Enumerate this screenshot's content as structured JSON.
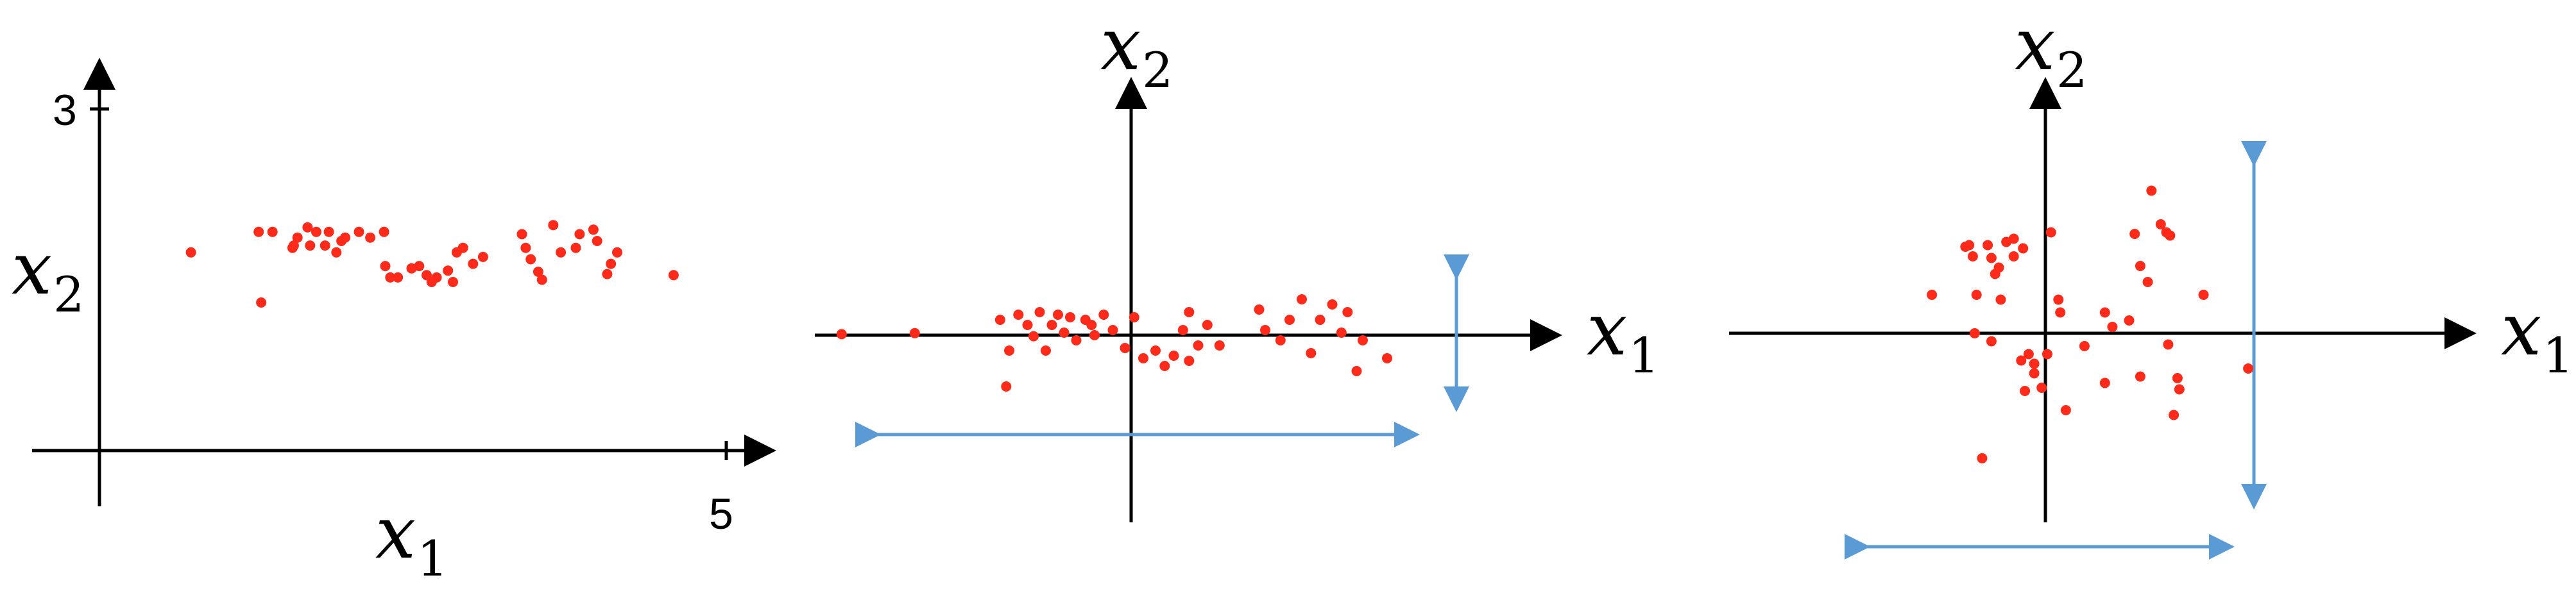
{
  "colors": {
    "point": "#ff2a1a",
    "axis": "#000000",
    "arrow": "#5b9bd5"
  },
  "chart_data": [
    {
      "type": "scatter",
      "title": "",
      "xlabel": "x_1",
      "ylabel": "x_2",
      "x_ticks": [
        "5"
      ],
      "y_ticks": [
        "3"
      ],
      "xlim": [
        0,
        5
      ],
      "ylim": [
        0,
        3
      ],
      "grid": false,
      "points": [
        [
          0.73,
          1.74
        ],
        [
          1.27,
          1.92
        ],
        [
          1.38,
          1.92
        ],
        [
          1.55,
          1.8
        ],
        [
          1.58,
          1.87
        ],
        [
          1.68,
          1.8
        ],
        [
          1.73,
          1.92
        ],
        [
          1.8,
          1.8
        ],
        [
          1.83,
          1.92
        ],
        [
          1.89,
          1.74
        ],
        [
          1.96,
          1.87
        ],
        [
          2.07,
          1.92
        ],
        [
          2.16,
          1.87
        ],
        [
          2.27,
          1.92
        ],
        [
          2.28,
          1.62
        ],
        [
          2.32,
          1.52
        ],
        [
          2.38,
          1.52
        ],
        [
          2.49,
          1.6
        ],
        [
          2.61,
          1.54
        ],
        [
          2.65,
          1.48
        ],
        [
          2.69,
          1.52
        ],
        [
          2.82,
          1.48
        ],
        [
          2.78,
          1.58
        ],
        [
          2.85,
          1.74
        ],
        [
          2.9,
          1.78
        ],
        [
          2.98,
          1.64
        ],
        [
          3.37,
          1.9
        ],
        [
          3.4,
          1.78
        ],
        [
          3.44,
          1.68
        ],
        [
          3.5,
          1.57
        ],
        [
          3.53,
          1.5
        ],
        [
          3.62,
          1.98
        ],
        [
          3.68,
          1.74
        ],
        [
          3.8,
          1.78
        ],
        [
          3.83,
          1.9
        ],
        [
          3.94,
          1.94
        ],
        [
          3.97,
          1.84
        ],
        [
          4.05,
          1.55
        ],
        [
          4.08,
          1.64
        ],
        [
          4.13,
          1.74
        ],
        [
          4.58,
          1.54
        ],
        [
          1.29,
          1.3
        ],
        [
          1.54,
          1.78
        ],
        [
          1.66,
          1.96
        ],
        [
          3.06,
          1.7
        ],
        [
          2.55,
          1.62
        ],
        [
          1.93,
          1.84
        ]
      ]
    },
    {
      "type": "scatter",
      "title": "",
      "xlabel": "x_1",
      "ylabel": "x_2",
      "grid": false,
      "xlim": [
        -5.5,
        7.5
      ],
      "ylim": [
        -3.5,
        4.0
      ],
      "points": [
        [
          -4.75,
          0.02
        ],
        [
          -3.55,
          0.04
        ],
        [
          -2.15,
          0.3
        ],
        [
          -2.0,
          -0.3
        ],
        [
          -2.05,
          -1.0
        ],
        [
          -1.85,
          0.4
        ],
        [
          -1.7,
          0.2
        ],
        [
          -1.6,
          -0.02
        ],
        [
          -1.5,
          0.45
        ],
        [
          -1.4,
          -0.3
        ],
        [
          -1.3,
          0.2
        ],
        [
          -1.2,
          0.4
        ],
        [
          -1.1,
          0.05
        ],
        [
          -1.0,
          0.35
        ],
        [
          -0.9,
          -0.1
        ],
        [
          -0.75,
          0.3
        ],
        [
          -0.6,
          0.0
        ],
        [
          -0.45,
          0.4
        ],
        [
          -0.3,
          0.1
        ],
        [
          -0.1,
          -0.25
        ],
        [
          0.05,
          0.35
        ],
        [
          0.2,
          -0.45
        ],
        [
          0.4,
          -0.3
        ],
        [
          0.55,
          -0.6
        ],
        [
          0.7,
          -0.4
        ],
        [
          0.85,
          0.1
        ],
        [
          0.95,
          -0.5
        ],
        [
          1.1,
          -0.2
        ],
        [
          1.25,
          0.2
        ],
        [
          0.95,
          0.45
        ],
        [
          1.45,
          -0.2
        ],
        [
          2.1,
          0.5
        ],
        [
          2.2,
          0.1
        ],
        [
          2.45,
          -0.1
        ],
        [
          2.6,
          0.3
        ],
        [
          2.8,
          0.7
        ],
        [
          2.95,
          -0.35
        ],
        [
          3.1,
          0.3
        ],
        [
          3.3,
          0.6
        ],
        [
          3.45,
          0.05
        ],
        [
          3.55,
          0.45
        ],
        [
          3.7,
          -0.7
        ],
        [
          3.8,
          -0.1
        ],
        [
          4.2,
          -0.45
        ],
        [
          -0.65,
          0.2
        ]
      ]
    },
    {
      "type": "scatter",
      "title": "",
      "xlabel": "x_1",
      "ylabel": "x_2",
      "grid": false,
      "xlim": [
        -5.0,
        7.0
      ],
      "ylim": [
        -5.0,
        6.0
      ],
      "points": [
        [
          -3.05,
          1.2
        ],
        [
          -2.15,
          2.7
        ],
        [
          -2.05,
          2.75
        ],
        [
          -1.95,
          2.4
        ],
        [
          -1.85,
          1.2
        ],
        [
          -1.55,
          2.75
        ],
        [
          -1.45,
          2.35
        ],
        [
          -1.35,
          1.85
        ],
        [
          -1.25,
          2.05
        ],
        [
          -1.2,
          1.05
        ],
        [
          -1.05,
          2.85
        ],
        [
          -0.85,
          2.4
        ],
        [
          -0.6,
          2.65
        ],
        [
          -1.9,
          0.0
        ],
        [
          -1.45,
          -0.25
        ],
        [
          -1.7,
          -3.9
        ],
        [
          -0.65,
          -0.85
        ],
        [
          -0.55,
          -1.8
        ],
        [
          -0.45,
          -0.65
        ],
        [
          -0.3,
          -1.25
        ],
        [
          -0.3,
          -0.95
        ],
        [
          -0.1,
          -1.7
        ],
        [
          0.05,
          -0.65
        ],
        [
          0.15,
          3.15
        ],
        [
          0.35,
          1.05
        ],
        [
          0.4,
          0.65
        ],
        [
          0.55,
          -2.4
        ],
        [
          1.05,
          -0.4
        ],
        [
          1.6,
          0.65
        ],
        [
          1.6,
          -1.55
        ],
        [
          1.8,
          0.2
        ],
        [
          2.25,
          0.4
        ],
        [
          2.4,
          3.1
        ],
        [
          2.55,
          2.1
        ],
        [
          2.55,
          -1.35
        ],
        [
          2.75,
          1.6
        ],
        [
          2.85,
          4.45
        ],
        [
          3.1,
          3.4
        ],
        [
          3.25,
          3.15
        ],
        [
          3.35,
          3.05
        ],
        [
          3.3,
          -0.35
        ],
        [
          3.45,
          -2.55
        ],
        [
          3.55,
          -1.4
        ],
        [
          4.25,
          1.2
        ],
        [
          3.6,
          -1.75
        ],
        [
          5.45,
          -1.1
        ],
        [
          -0.85,
          2.95
        ]
      ]
    }
  ]
}
